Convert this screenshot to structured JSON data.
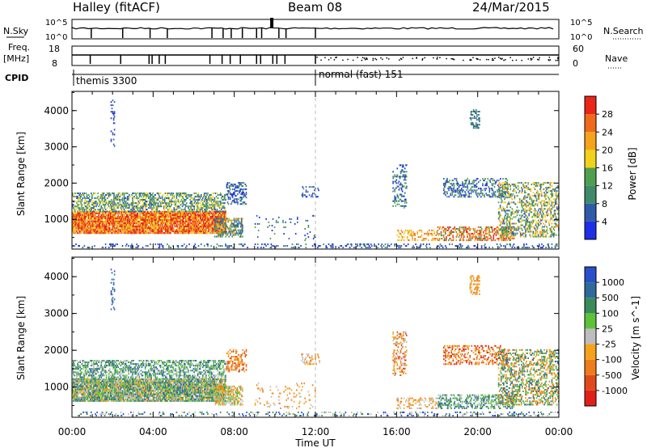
{
  "header": {
    "station": "Halley (fitACF)",
    "beam": "Beam 08",
    "date": "24/Mar/2015"
  },
  "top_panels": {
    "nsky_label": "N.Sky",
    "nsky_ticks": [
      "10^5",
      "10^0"
    ],
    "nsearch_label": "N.Search",
    "nsearch_ticks": [
      "10^5",
      "10^0"
    ],
    "freq_label": "Freq.",
    "freq_unit": "[MHz]",
    "freq_ticks": [
      "18",
      "8"
    ],
    "nave_label": "Nave",
    "nave_ticks": [
      "60",
      "0"
    ],
    "cpid_label": "CPID",
    "cpid_segments": [
      "themis 3300",
      "normal (fast) 151"
    ]
  },
  "colors": {
    "power_scale": [
      "#1f2ee8",
      "#2f5aa8",
      "#3f8a6a",
      "#4f9f4f",
      "#f0d21a",
      "#f5a31a",
      "#ef6a1a",
      "#e8261a"
    ],
    "velocity_scale": [
      "#2a4fc8",
      "#2f6a9a",
      "#3a8a5a",
      "#5cc23a",
      "#bdbdbd",
      "#f5a31a",
      "#ef7d1a",
      "#e04a1a",
      "#e0201a"
    ],
    "frame": "#000000",
    "noon_marker": "#bbbbbb"
  },
  "chart_data": [
    {
      "type": "heatmap",
      "name": "power",
      "ylabel": "Slant Range [km]",
      "ylim": [
        180,
        4530
      ],
      "yticks": [
        "1000",
        "2000",
        "3000",
        "4000"
      ],
      "colorbar_label": "Power [dB]",
      "colorbar_ticks": [
        "4",
        "8",
        "12",
        "16",
        "20",
        "24",
        "28"
      ],
      "clim": [
        0,
        32
      ]
    },
    {
      "type": "heatmap",
      "name": "velocity",
      "ylabel": "Slant Range [km]",
      "ylim": [
        180,
        4530
      ],
      "yticks": [
        "1000",
        "2000",
        "3000",
        "4000"
      ],
      "colorbar_label": "Velocity [m s^-1]",
      "colorbar_ticks": [
        "1000",
        "500",
        "100",
        "25",
        "-25",
        "-100",
        "-500",
        "-1000"
      ]
    }
  ],
  "time_axis": {
    "xlabel": "Time UT",
    "ticks": [
      "00:00",
      "04:00",
      "08:00",
      "12:00",
      "16:00",
      "20:00",
      "00:00"
    ]
  }
}
